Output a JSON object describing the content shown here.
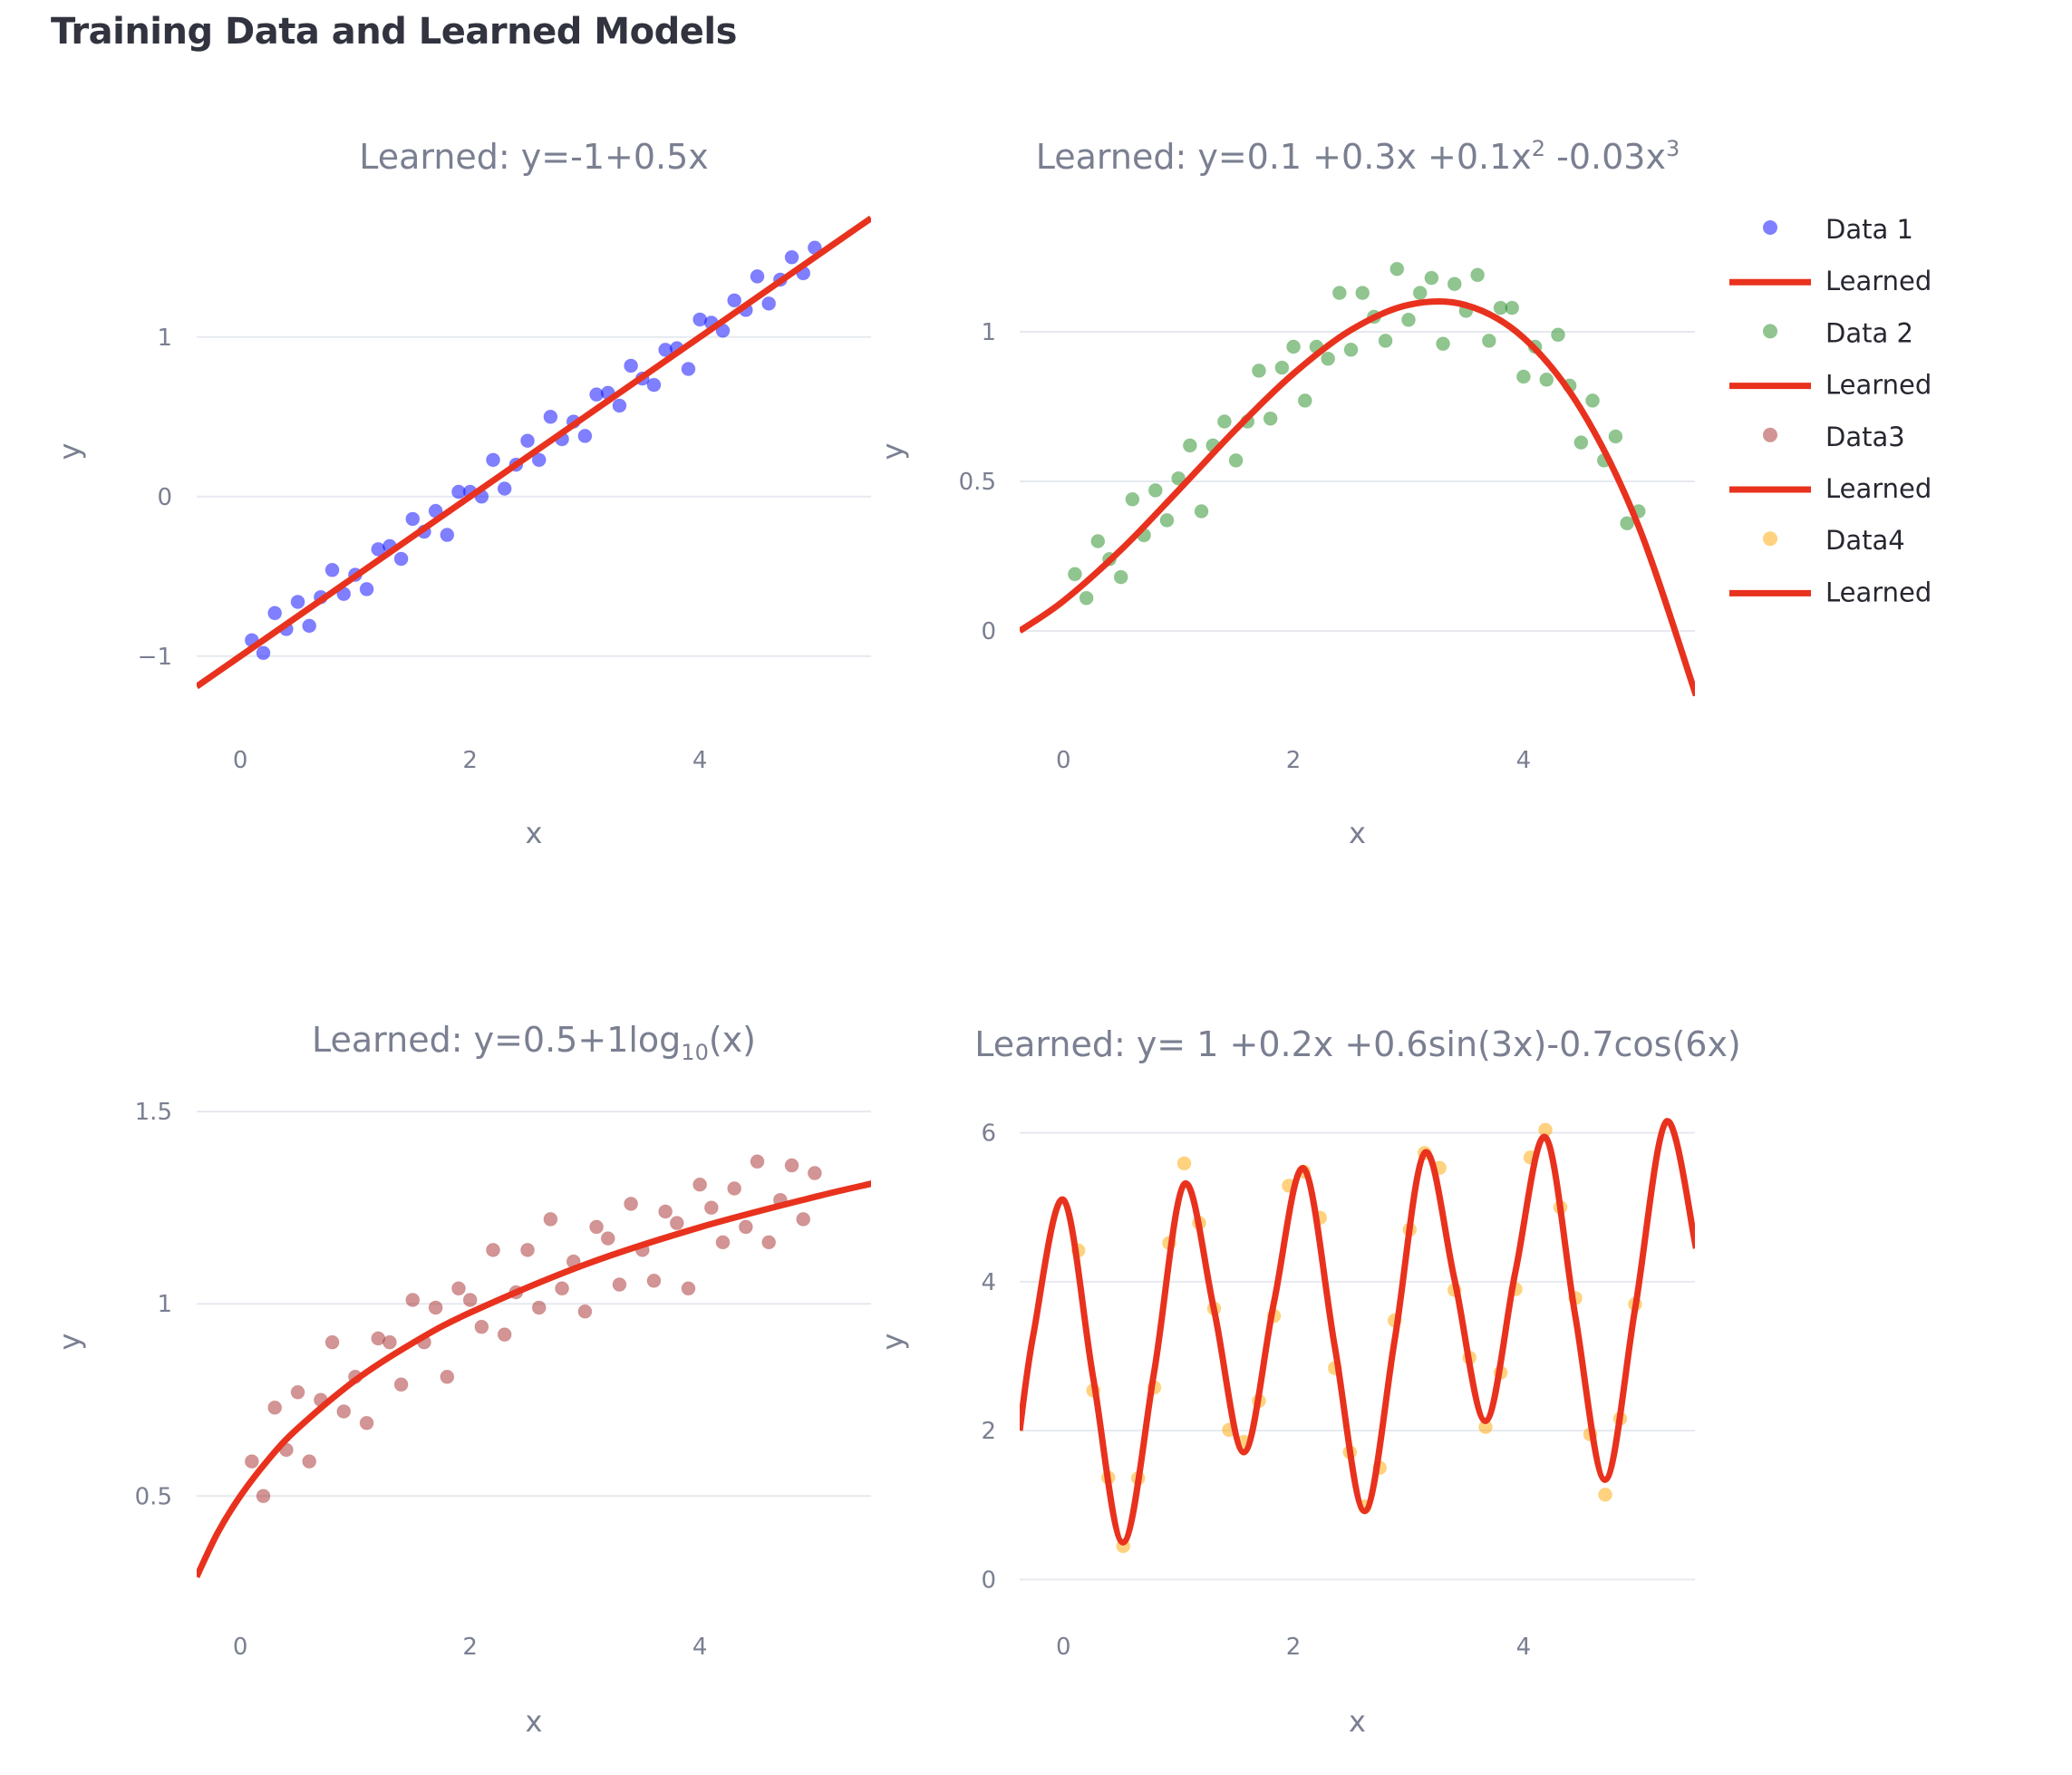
{
  "page_title": "Training Data and Learned Models",
  "chart_data": [
    {
      "type": "scatter",
      "title": "Learned: y=-1+0.5x",
      "xlabel": "x",
      "ylabel": "y",
      "xlim": [
        -0.38,
        5.49
      ],
      "ylim": [
        -1.217,
        1.783
      ],
      "xticks": [
        "0",
        "2",
        "4"
      ],
      "xtick_values": [
        0,
        2,
        4
      ],
      "yticks": [
        "−1",
        "0",
        "1"
      ],
      "ytick_values": [
        -1,
        0,
        1
      ],
      "grid": "horizontal",
      "series": [
        {
          "name": "Data 1",
          "mode": "markers",
          "color": "#0000ff",
          "x": [
            0.1,
            0.2,
            0.3,
            0.4,
            0.5,
            0.6,
            0.7,
            0.8,
            0.9,
            1.0,
            1.1,
            1.2,
            1.3,
            1.4,
            1.5,
            1.6,
            1.7,
            1.8,
            1.9,
            2.0,
            2.1,
            2.2,
            2.3,
            2.4,
            2.5,
            2.6,
            2.7,
            2.8,
            2.9,
            3.0,
            3.1,
            3.2,
            3.3,
            3.4,
            3.5,
            3.6,
            3.7,
            3.8,
            3.9,
            4.0,
            4.1,
            4.2,
            4.3,
            4.4,
            4.5,
            4.6,
            4.7,
            4.8,
            4.9,
            5.0
          ],
          "y": [
            -0.9,
            -0.98,
            -0.73,
            -0.83,
            -0.66,
            -0.81,
            -0.63,
            -0.46,
            -0.61,
            -0.49,
            -0.58,
            -0.33,
            -0.31,
            -0.39,
            -0.14,
            -0.22,
            -0.09,
            -0.24,
            0.03,
            0.03,
            0.0,
            0.23,
            0.05,
            0.2,
            0.35,
            0.23,
            0.5,
            0.36,
            0.47,
            0.38,
            0.64,
            0.65,
            0.57,
            0.82,
            0.74,
            0.7,
            0.92,
            0.93,
            0.8,
            1.11,
            1.09,
            1.04,
            1.23,
            1.17,
            1.38,
            1.21,
            1.36,
            1.5,
            1.4,
            1.56
          ]
        },
        {
          "name": "Learned",
          "mode": "lines",
          "color": "#e8321e",
          "x": [
            -0.38,
            5.49
          ],
          "y": [
            -1.19,
            1.745
          ]
        }
      ]
    },
    {
      "type": "scatter",
      "title": "Learned: y=0.1 +0.3x +0.1x",
      "title_sup1": "2",
      "title_mid": " -0.03x",
      "title_sup2": "3",
      "xlabel": "x",
      "ylabel": "y",
      "xlim": [
        -0.38,
        5.49
      ],
      "ylim": [
        -0.2,
        1.4
      ],
      "xticks": [
        "0",
        "2",
        "4"
      ],
      "xtick_values": [
        0,
        2,
        4
      ],
      "yticks": [
        "0",
        "0.5",
        "1"
      ],
      "ytick_values": [
        0,
        0.5,
        1
      ],
      "grid": "horizontal",
      "series": [
        {
          "name": "Data 2",
          "mode": "markers",
          "color": "#228b22",
          "x": [
            0.1,
            0.2,
            0.3,
            0.4,
            0.5,
            0.6,
            0.7,
            0.8,
            0.9,
            1.0,
            1.1,
            1.2,
            1.3,
            1.4,
            1.5,
            1.6,
            1.7,
            1.8,
            1.9,
            2.0,
            2.1,
            2.2,
            2.3,
            2.4,
            2.5,
            2.6,
            2.7,
            2.8,
            2.9,
            3.0,
            3.1,
            3.2,
            3.3,
            3.4,
            3.5,
            3.6,
            3.7,
            3.8,
            3.9,
            4.0,
            4.1,
            4.2,
            4.3,
            4.4,
            4.5,
            4.6,
            4.7,
            4.8,
            4.9,
            5.0
          ],
          "y": [
            0.19,
            0.11,
            0.3,
            0.24,
            0.18,
            0.44,
            0.32,
            0.47,
            0.37,
            0.51,
            0.62,
            0.4,
            0.62,
            0.7,
            0.57,
            0.7,
            0.87,
            0.71,
            0.88,
            0.95,
            0.77,
            0.95,
            0.91,
            1.13,
            0.94,
            1.13,
            1.05,
            0.97,
            1.21,
            1.04,
            1.13,
            1.18,
            0.96,
            1.16,
            1.07,
            1.19,
            0.97,
            1.08,
            1.08,
            0.85,
            0.95,
            0.84,
            0.99,
            0.82,
            0.63,
            0.77,
            0.57,
            0.65,
            0.36,
            0.4
          ]
        },
        {
          "name": "Learned",
          "mode": "lines",
          "color": "#e8321e",
          "x": [
            -0.38,
            0,
            0.5,
            1,
            1.5,
            2,
            2.5,
            3,
            3.5,
            4,
            4.5,
            5,
            5.5
          ],
          "y": [
            0.0,
            0.1,
            0.271,
            0.47,
            0.674,
            0.86,
            1.006,
            1.09,
            1.089,
            0.98,
            0.741,
            0.35,
            -0.216
          ]
        }
      ]
    },
    {
      "type": "scatter",
      "title": "Learned: y=0.5+1log",
      "title_sub": "10",
      "title_end": "(x)",
      "xlabel": "x",
      "ylabel": "y",
      "xlim": [
        -0.38,
        5.49
      ],
      "ylim": [
        0.279,
        1.524
      ],
      "xticks": [
        "0",
        "2",
        "4"
      ],
      "xtick_values": [
        0,
        2,
        4
      ],
      "yticks": [
        "0.5",
        "1",
        "1.5"
      ],
      "ytick_values": [
        0.5,
        1,
        1.5
      ],
      "grid": "horizontal",
      "series": [
        {
          "name": "Data3",
          "mode": "markers",
          "color": "#a52a2a",
          "x": [
            0.1,
            0.2,
            0.3,
            0.4,
            0.5,
            0.6,
            0.7,
            0.8,
            0.9,
            1.0,
            1.1,
            1.2,
            1.3,
            1.4,
            1.5,
            1.6,
            1.7,
            1.8,
            1.9,
            2.0,
            2.1,
            2.2,
            2.3,
            2.4,
            2.5,
            2.6,
            2.7,
            2.8,
            2.9,
            3.0,
            3.1,
            3.2,
            3.3,
            3.4,
            3.5,
            3.6,
            3.7,
            3.8,
            3.9,
            4.0,
            4.1,
            4.2,
            4.3,
            4.4,
            4.5,
            4.6,
            4.7,
            4.8,
            4.9,
            5.0
          ],
          "y": [
            0.59,
            0.5,
            0.73,
            0.62,
            0.77,
            0.59,
            0.75,
            0.9,
            0.72,
            0.81,
            0.69,
            0.91,
            0.9,
            0.79,
            1.01,
            0.9,
            0.99,
            0.81,
            1.04,
            1.01,
            0.94,
            1.14,
            0.92,
            1.03,
            1.14,
            0.99,
            1.22,
            1.04,
            1.11,
            0.98,
            1.2,
            1.17,
            1.05,
            1.26,
            1.14,
            1.06,
            1.24,
            1.21,
            1.04,
            1.31,
            1.25,
            1.16,
            1.3,
            1.2,
            1.37,
            1.16,
            1.27,
            1.36,
            1.22,
            1.34
          ]
        },
        {
          "name": "Learned",
          "mode": "lines",
          "color": "#e8321e",
          "x": [
            -0.38,
            -0.2,
            0,
            0.25,
            0.5,
            1,
            1.5,
            2,
            3,
            4,
            5,
            5.5
          ],
          "y": [
            0.29,
            0.403,
            0.5,
            0.597,
            0.676,
            0.801,
            0.898,
            0.977,
            1.102,
            1.199,
            1.278,
            1.313
          ]
        }
      ]
    },
    {
      "type": "scatter",
      "title": "Learned: y= 1 +0.2x +0.6sin(3x)-0.7cos(6x)",
      "xlabel": "x",
      "ylabel": "y",
      "xlim": [
        -0.38,
        5.49
      ],
      "ylim": [
        -0.02,
        6.41
      ],
      "xticks": [
        "0",
        "2",
        "4"
      ],
      "xtick_values": [
        0,
        2,
        4
      ],
      "yticks": [
        "0",
        "2",
        "4",
        "6"
      ],
      "ytick_values": [
        0,
        2,
        4,
        6
      ],
      "grid": "horizontal",
      "series": [
        {
          "name": "Data4",
          "mode": "markers",
          "color": "#ffa500",
          "x": [
            0.13,
            0.26,
            0.39,
            0.52,
            0.65,
            0.79,
            0.92,
            1.05,
            1.18,
            1.31,
            1.44,
            1.57,
            1.7,
            1.83,
            1.96,
            2.09,
            2.23,
            2.36,
            2.49,
            2.62,
            2.75,
            2.88,
            3.01,
            3.14,
            3.27,
            3.4,
            3.53,
            3.67,
            3.8,
            3.93,
            4.06,
            4.19,
            4.32,
            4.45,
            4.58,
            4.71,
            4.84,
            4.97
          ],
          "y": [
            4.42,
            2.54,
            1.37,
            0.45,
            1.36,
            2.58,
            4.52,
            5.59,
            4.79,
            3.64,
            2.01,
            1.85,
            2.4,
            3.54,
            5.29,
            5.48,
            4.86,
            2.84,
            1.71,
            0.98,
            1.5,
            3.48,
            4.7,
            5.73,
            5.53,
            3.89,
            2.98,
            2.05,
            2.78,
            3.9,
            5.67,
            6.04,
            5.0,
            3.78,
            1.95,
            1.14,
            2.16,
            3.7
          ]
        },
        {
          "name": "Learned",
          "mode": "lines",
          "color": "#e8321e",
          "x": [
            -0.38,
            -0.26,
            0,
            0.26,
            0.52,
            0.79,
            1.05,
            1.31,
            1.57,
            1.83,
            2.09,
            2.36,
            2.62,
            2.88,
            3.14,
            3.4,
            3.67,
            3.93,
            4.19,
            4.45,
            4.71,
            4.97,
            5.24,
            5.5
          ],
          "y": [
            2.0,
            3.3,
            5.1,
            2.7,
            0.5,
            2.8,
            5.31,
            3.62,
            1.71,
            3.72,
            5.52,
            3.12,
            0.92,
            3.22,
            5.73,
            4.03,
            2.13,
            4.14,
            5.94,
            3.54,
            1.34,
            3.64,
            6.15,
            4.45
          ]
        }
      ]
    }
  ],
  "legend": {
    "placement": "right",
    "items": [
      {
        "label": "Data 1",
        "type": "marker",
        "color": "#0000ff"
      },
      {
        "label": "Learned",
        "type": "line",
        "color": "#e8321e"
      },
      {
        "label": "Data 2",
        "type": "marker",
        "color": "#228b22"
      },
      {
        "label": "Learned",
        "type": "line",
        "color": "#e8321e"
      },
      {
        "label": "Data3",
        "type": "marker",
        "color": "#a52a2a"
      },
      {
        "label": "Learned",
        "type": "line",
        "color": "#e8321e"
      },
      {
        "label": "Data4",
        "type": "marker",
        "color": "#ffa500"
      },
      {
        "label": "Learned",
        "type": "line",
        "color": "#e8321e"
      }
    ]
  }
}
